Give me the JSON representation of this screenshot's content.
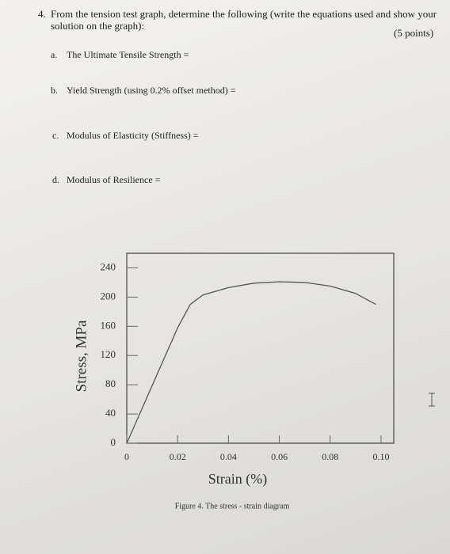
{
  "question": {
    "number": "4.",
    "text_line1": "From the tension test graph, determine the following (write the equations used and show your",
    "text_line2": "solution on the graph):",
    "points": "(5 points)",
    "items": [
      {
        "label": "a.",
        "text": "The Ultimate Tensile Strength ="
      },
      {
        "label": "b.",
        "text": "Yield Strength (using 0.2% offset method) ="
      },
      {
        "label": "c.",
        "text": "Modulus of Elasticity (Stiffness) ="
      },
      {
        "label": "d.",
        "text": "Modulus of Resilience ="
      }
    ]
  },
  "chart_data": {
    "type": "line",
    "xlabel": "Strain (%)",
    "ylabel": "Stress, MPa",
    "caption": "Figure 4. The stress - strain diagram",
    "x": [
      0,
      0.02,
      0.025,
      0.03,
      0.04,
      0.05,
      0.06,
      0.07,
      0.08,
      0.09,
      0.098
    ],
    "values": [
      0,
      158,
      190,
      203,
      213,
      219,
      221,
      220,
      215,
      205,
      190
    ],
    "color": "#555555",
    "xlim": [
      0,
      0.105
    ],
    "xticks": [
      0,
      0.02,
      0.04,
      0.06,
      0.08,
      {
        "value": 0.1,
        "label": "0.10"
      }
    ],
    "ylim": [
      0,
      260
    ],
    "yticks": [
      0,
      40,
      80,
      120,
      160,
      200,
      240
    ],
    "grid": false
  }
}
